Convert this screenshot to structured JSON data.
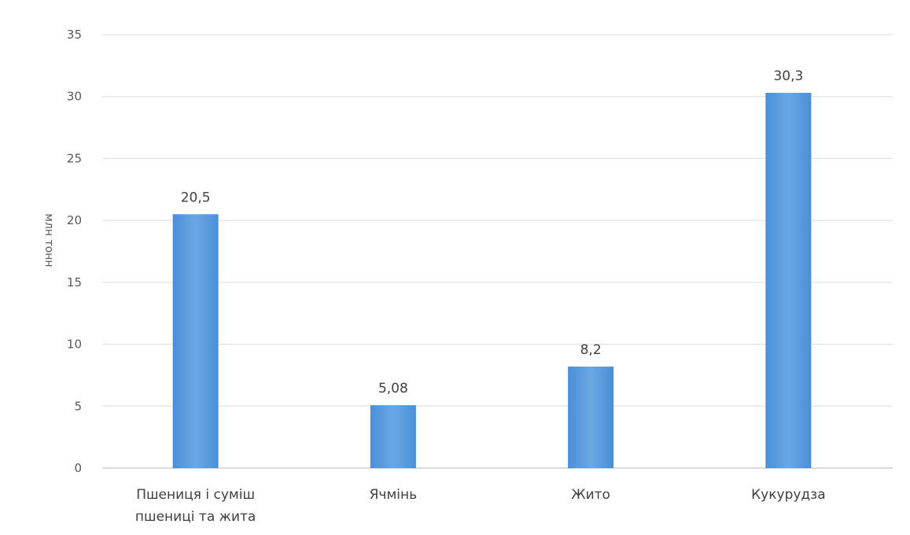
{
  "chart_data": {
    "type": "bar",
    "categories": [
      [
        "Пшениця і суміш",
        "пшениці та жита"
      ],
      [
        "Ячмінь"
      ],
      [
        "Жито"
      ],
      [
        "Кукурудза"
      ]
    ],
    "values": [
      20.5,
      5.08,
      8.2,
      30.3
    ],
    "data_labels": [
      "20,5",
      "5,08",
      "8,2",
      "30,3"
    ],
    "ylabel": "млн тонн",
    "ylim": [
      0,
      35
    ],
    "yticks": [
      0,
      5,
      10,
      15,
      20,
      25,
      30,
      35
    ],
    "grid": true,
    "bar_color": "#4a8fd6",
    "bar_color_light": "#6aa7e4",
    "grid_color": "#dcdcdc"
  }
}
